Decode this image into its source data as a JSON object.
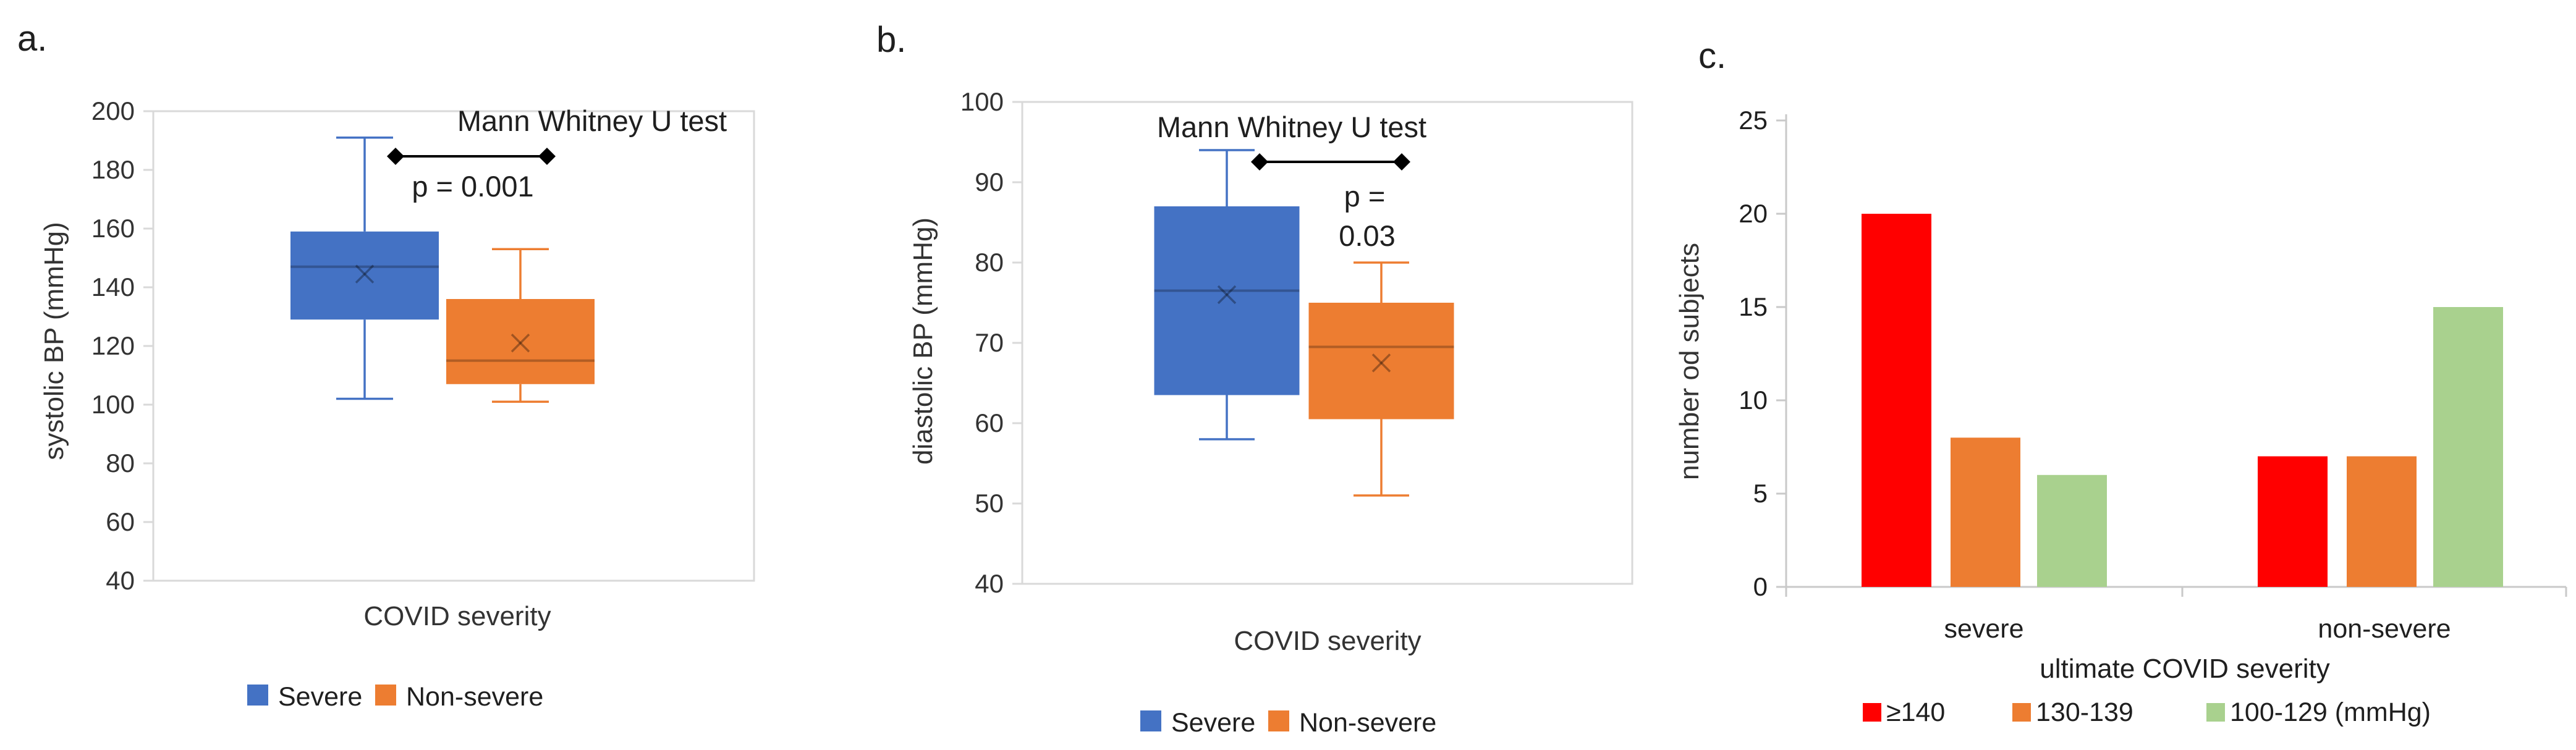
{
  "figure": {
    "background": "#ffffff",
    "panels": [
      {
        "id": "a",
        "label": "a."
      },
      {
        "id": "b",
        "label": "b."
      },
      {
        "id": "c",
        "label": "c."
      }
    ]
  },
  "chart_data": [
    {
      "type": "boxplot",
      "panel": "a",
      "annotation": "Mann Whitney U test",
      "p_lines": [
        "p = 0.001"
      ],
      "ylabel": "systolic BP (mmHg)",
      "xlabel": "COVID severity",
      "ylim": [
        40,
        200
      ],
      "yticks": [
        200,
        180,
        160,
        140,
        120,
        100,
        80,
        60,
        40
      ],
      "grid": false,
      "legend_position": "bottom",
      "series": [
        {
          "name": "Severe",
          "color": "#4472C4",
          "whisker_low": 102,
          "q1": 129,
          "median": 147,
          "mean": 144.5,
          "q3": 159,
          "whisker_high": 191
        },
        {
          "name": "Non-severe",
          "color": "#ED7D31",
          "whisker_low": 101,
          "q1": 107,
          "median": 115,
          "mean": 121,
          "q3": 136,
          "whisker_high": 153
        }
      ]
    },
    {
      "type": "boxplot",
      "panel": "b",
      "annotation": "Mann Whitney U test",
      "p_lines": [
        "p =",
        "0.03"
      ],
      "ylabel": "diastolic BP (mmHg)",
      "xlabel": "COVID severity",
      "ylim": [
        40,
        100
      ],
      "yticks": [
        100,
        90,
        80,
        70,
        60,
        50,
        40
      ],
      "grid": false,
      "legend_position": "bottom",
      "series": [
        {
          "name": "Severe",
          "color": "#4472C4",
          "whisker_low": 58,
          "q1": 63.5,
          "median": 76.5,
          "mean": 76,
          "q3": 87,
          "whisker_high": 94
        },
        {
          "name": "Non-severe",
          "color": "#ED7D31",
          "whisker_low": 51,
          "q1": 60.5,
          "median": 69.5,
          "mean": 67.5,
          "q3": 75,
          "whisker_high": 80
        }
      ]
    },
    {
      "type": "bar",
      "panel": "c",
      "ylabel": "number od subjects",
      "xlabel": "ultimate COVID severity",
      "ylim": [
        0,
        25
      ],
      "yticks": [
        25,
        20,
        15,
        10,
        5,
        0
      ],
      "grid": false,
      "legend_position": "bottom",
      "categories": [
        "severe",
        "non-severe"
      ],
      "series": [
        {
          "name": "≥140",
          "color": "#FF0000",
          "values": [
            20,
            7
          ]
        },
        {
          "name": "130-139",
          "color": "#ED7D31",
          "values": [
            8,
            7
          ]
        },
        {
          "name": "100-129 (mmHg)",
          "color": "#A9D18E",
          "values": [
            6,
            15
          ]
        }
      ]
    }
  ],
  "style_colors": {
    "severe_blue": "#4472C4",
    "nonsevere_orange": "#ED7D31",
    "bar_red": "#FF0000",
    "bar_orange": "#ED7D31",
    "bar_green": "#A9D18E",
    "axis_gray": "#C9C9C9",
    "frame_gray": "#D9D9D9",
    "text_dark": "#1f1f1f",
    "tick_text": "#333333"
  }
}
